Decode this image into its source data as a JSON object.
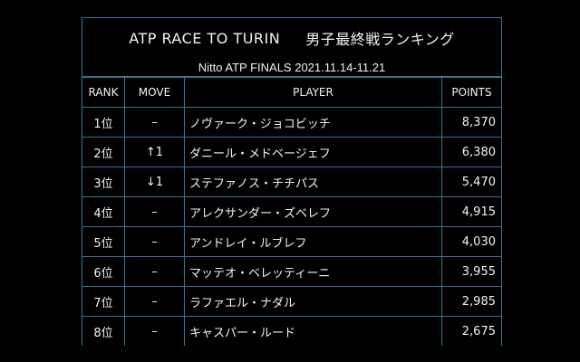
{
  "title": {
    "left": "ATP RACE TO TURIN",
    "right": "男子最終戦ランキング"
  },
  "subtitle": "Nitto ATP  FINALS 2021.11.14-11.21",
  "headers": {
    "rank": "RANK",
    "move": "MOVE",
    "player": "PLAYER",
    "points": "POINTS"
  },
  "rows": [
    {
      "rank": "1位",
      "move": "–",
      "player": "ノヴァーク・ジョコビッチ",
      "points": "8,370"
    },
    {
      "rank": "2位",
      "move": "↑1",
      "player": "ダニール・メドベージェフ",
      "points": "6,380"
    },
    {
      "rank": "3位",
      "move": "↓1",
      "player": "ステファノス・チチパス",
      "points": "5,470"
    },
    {
      "rank": "4位",
      "move": "–",
      "player": "アレクサンダー・ズベレフ",
      "points": "4,915"
    },
    {
      "rank": "5位",
      "move": "–",
      "player": "アンドレイ・ルブレフ",
      "points": "4,030"
    },
    {
      "rank": "6位",
      "move": "–",
      "player": "マッテオ・ベレッティーニ",
      "points": "3,955"
    },
    {
      "rank": "7位",
      "move": "–",
      "player": "ラファエル・ナダル",
      "points": "2,985"
    },
    {
      "rank": "8位",
      "move": "–",
      "player": "キャスパー・ルード",
      "points": "2,675"
    }
  ],
  "colors": {
    "background": "#000000",
    "grid": "#2f7890",
    "text": "#f2f2f2"
  }
}
